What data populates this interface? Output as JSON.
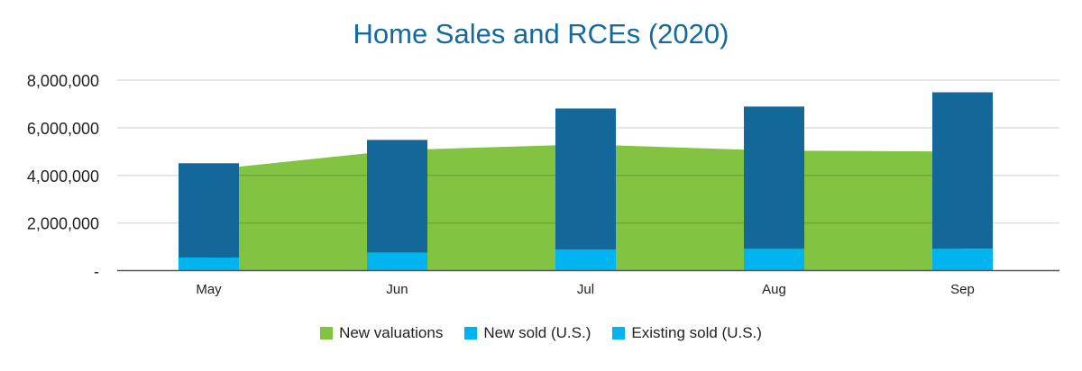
{
  "chart_data": {
    "type": "bar",
    "title": "Home Sales and RCEs (2020)",
    "xlabel": "",
    "ylabel": "",
    "categories": [
      "May",
      "Jun",
      "Jul",
      "Aug",
      "Sep"
    ],
    "ylim": [
      0,
      8000000
    ],
    "yticks": [
      0,
      2000000,
      4000000,
      6000000,
      8000000
    ],
    "ytick_labels": [
      "-",
      "2,000,000",
      "4,000,000",
      "6,000,000",
      "8,000,000"
    ],
    "grid": true,
    "legend_position": "bottom",
    "series": [
      {
        "name": "New valuations",
        "kind": "area",
        "color": "#82c341",
        "values": [
          4230000,
          5060000,
          5300000,
          5040000,
          5000000
        ]
      },
      {
        "name": "New sold (U.S.)",
        "kind": "stacked-bar",
        "color": "#00b5ef",
        "values": [
          550000,
          760000,
          890000,
          920000,
          920000
        ]
      },
      {
        "name": "Existing sold (U.S.)",
        "kind": "stacked-bar",
        "color": "#136899",
        "legend_color": "#00b5ef",
        "values": [
          3960000,
          4730000,
          5920000,
          5970000,
          6570000
        ]
      }
    ]
  }
}
